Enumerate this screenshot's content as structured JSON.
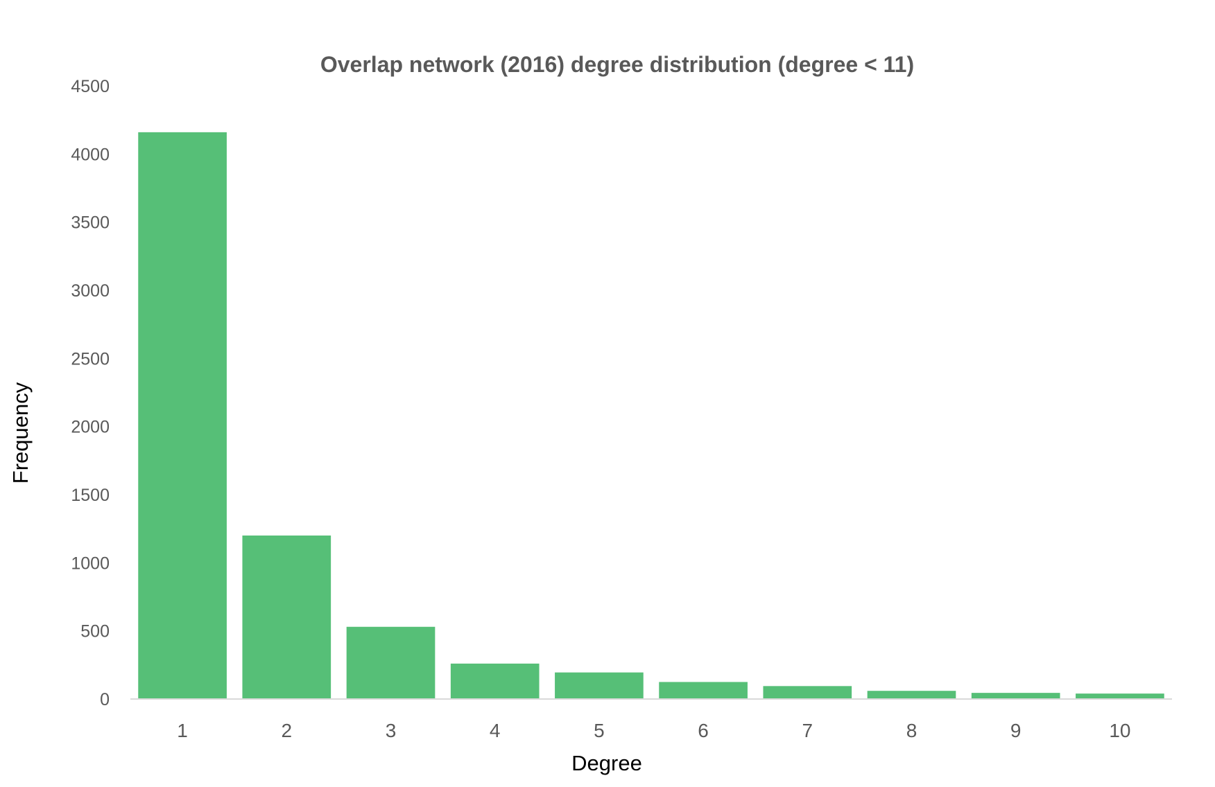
{
  "chart_data": {
    "type": "bar",
    "title": "Overlap network (2016) degree distribution (degree < 11)",
    "xlabel": "Degree",
    "ylabel": "Frequency",
    "categories": [
      "1",
      "2",
      "3",
      "4",
      "5",
      "6",
      "7",
      "8",
      "9",
      "10"
    ],
    "values": [
      4160,
      1200,
      530,
      260,
      195,
      125,
      95,
      60,
      45,
      40
    ],
    "ylim": [
      0,
      4500
    ],
    "yticks": [
      "0",
      "500",
      "1000",
      "1500",
      "2000",
      "2500",
      "3000",
      "3500",
      "4000",
      "4500"
    ],
    "grid": false,
    "legend": "none",
    "bar_color": "#56BF77",
    "axis_color": "#D9D9D9"
  }
}
